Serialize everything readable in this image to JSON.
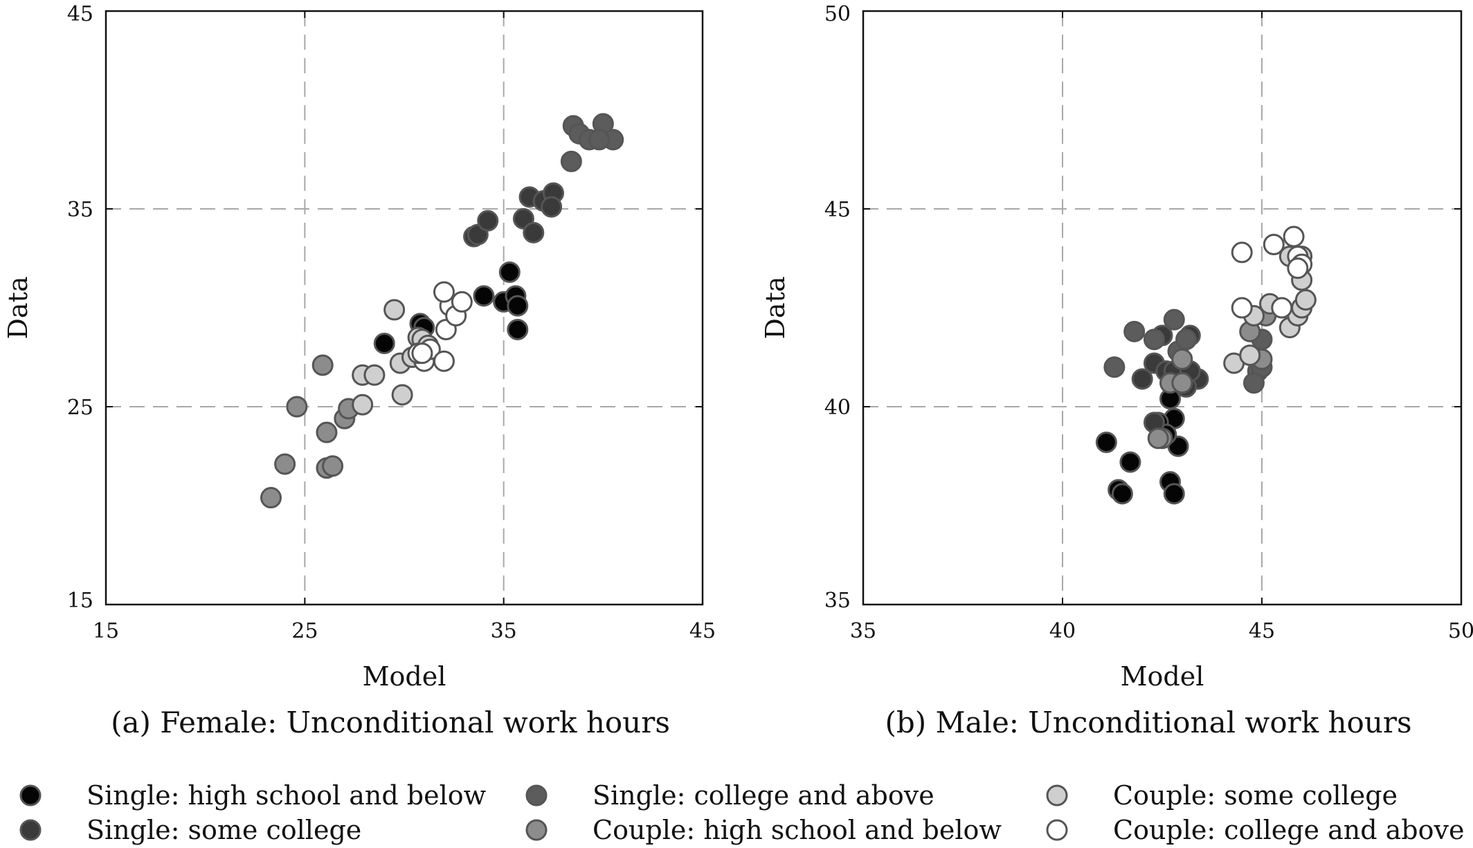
{
  "colors": {
    "single_hs": "#050505",
    "single_some": "#3a3a3a",
    "single_college": "#5c5c5c",
    "couple_hs": "#8c8c8c",
    "couple_some": "#cfcfcf",
    "couple_college": "#ffffff"
  },
  "legend": [
    {
      "key": "single_hs",
      "label": "Single: high school and below"
    },
    {
      "key": "single_college",
      "label": "Single: college and above"
    },
    {
      "key": "couple_some",
      "label": "Couple: some college"
    },
    {
      "key": "single_some",
      "label": "Single: some college"
    },
    {
      "key": "couple_hs",
      "label": "Couple: high school and below"
    },
    {
      "key": "couple_college",
      "label": "Couple: college and above"
    }
  ],
  "chart_data": [
    {
      "type": "scatter",
      "caption": "(a) Female: Unconditional work hours",
      "xlabel": "Model",
      "ylabel": "Data",
      "xlim": [
        15,
        45
      ],
      "ylim": [
        15,
        45
      ],
      "xticks": [
        "15",
        "25",
        "35",
        "45"
      ],
      "yticks": [
        "15",
        "25",
        "35",
        "45"
      ],
      "grid": true,
      "series": [
        {
          "key": "single_hs",
          "points": [
            [
              29.0,
              28.2
            ],
            [
              30.8,
              29.2
            ],
            [
              31.0,
              29.0
            ],
            [
              34.0,
              30.6
            ],
            [
              35.3,
              31.8
            ],
            [
              35.0,
              30.3
            ],
            [
              35.6,
              30.6
            ],
            [
              35.7,
              30.1
            ],
            [
              35.7,
              28.9
            ]
          ]
        },
        {
          "key": "single_some",
          "points": [
            [
              33.5,
              33.6
            ],
            [
              33.7,
              33.7
            ],
            [
              34.2,
              34.4
            ],
            [
              36.0,
              34.5
            ],
            [
              36.3,
              35.6
            ],
            [
              36.5,
              33.8
            ],
            [
              37.0,
              35.4
            ],
            [
              37.5,
              35.8
            ],
            [
              37.4,
              35.1
            ]
          ]
        },
        {
          "key": "single_college",
          "points": [
            [
              38.5,
              39.2
            ],
            [
              38.8,
              38.8
            ],
            [
              39.3,
              38.5
            ],
            [
              40.0,
              39.3
            ],
            [
              40.5,
              38.5
            ],
            [
              39.8,
              38.5
            ],
            [
              38.4,
              37.4
            ]
          ]
        },
        {
          "key": "couple_hs",
          "points": [
            [
              23.3,
              20.4
            ],
            [
              24.0,
              22.1
            ],
            [
              24.6,
              25.0
            ],
            [
              25.9,
              27.1
            ],
            [
              26.1,
              23.7
            ],
            [
              26.1,
              21.9
            ],
            [
              26.4,
              22.0
            ],
            [
              27.0,
              24.4
            ],
            [
              27.2,
              24.9
            ]
          ]
        },
        {
          "key": "couple_some",
          "points": [
            [
              27.9,
              26.6
            ],
            [
              28.5,
              26.6
            ],
            [
              27.9,
              25.1
            ],
            [
              29.9,
              25.6
            ],
            [
              29.8,
              27.2
            ],
            [
              29.5,
              29.9
            ],
            [
              30.4,
              27.5
            ],
            [
              30.7,
              28.5
            ],
            [
              30.9,
              28.4
            ],
            [
              31.2,
              28.1
            ]
          ]
        },
        {
          "key": "couple_college",
          "points": [
            [
              31.0,
              27.3
            ],
            [
              30.7,
              27.7
            ],
            [
              31.3,
              27.9
            ],
            [
              32.0,
              27.3
            ],
            [
              32.1,
              28.9
            ],
            [
              32.3,
              30.1
            ],
            [
              32.6,
              29.6
            ],
            [
              32.9,
              30.3
            ],
            [
              32.0,
              30.8
            ],
            [
              30.9,
              27.7
            ]
          ]
        }
      ]
    },
    {
      "type": "scatter",
      "caption": "(b) Male: Unconditional work hours",
      "xlabel": "Model",
      "ylabel": "Data",
      "xlim": [
        35,
        50
      ],
      "ylim": [
        35,
        50
      ],
      "xticks": [
        "35",
        "40",
        "45",
        "50"
      ],
      "yticks": [
        "35",
        "40",
        "45",
        "50"
      ],
      "grid": true,
      "series": [
        {
          "key": "single_hs",
          "points": [
            [
              41.1,
              39.1
            ],
            [
              41.4,
              37.9
            ],
            [
              41.5,
              37.8
            ],
            [
              41.7,
              38.6
            ],
            [
              42.7,
              38.1
            ],
            [
              42.8,
              37.8
            ],
            [
              42.8,
              39.7
            ],
            [
              42.9,
              39.0
            ],
            [
              42.7,
              40.2
            ],
            [
              42.4,
              39.6
            ],
            [
              42.6,
              39.3
            ]
          ]
        },
        {
          "key": "single_some",
          "points": [
            [
              42.0,
              40.7
            ],
            [
              42.3,
              41.1
            ],
            [
              42.6,
              40.9
            ],
            [
              42.5,
              41.8
            ],
            [
              43.2,
              41.8
            ],
            [
              43.4,
              40.7
            ],
            [
              43.1,
              40.5
            ],
            [
              42.3,
              39.6
            ],
            [
              42.8,
              40.9
            ],
            [
              43.2,
              40.9
            ]
          ]
        },
        {
          "key": "single_college",
          "points": [
            [
              41.3,
              41.0
            ],
            [
              41.8,
              41.9
            ],
            [
              42.3,
              41.7
            ],
            [
              42.8,
              42.2
            ],
            [
              42.9,
              41.4
            ],
            [
              44.9,
              40.9
            ],
            [
              45.0,
              41.0
            ],
            [
              44.8,
              40.6
            ],
            [
              45.0,
              41.7
            ],
            [
              43.1,
              41.7
            ]
          ]
        },
        {
          "key": "couple_hs",
          "points": [
            [
              42.5,
              39.2
            ],
            [
              42.4,
              39.2
            ],
            [
              42.7,
              40.6
            ],
            [
              43.0,
              41.2
            ],
            [
              43.0,
              40.6
            ],
            [
              44.7,
              41.9
            ],
            [
              45.1,
              42.3
            ],
            [
              45.0,
              41.2
            ]
          ]
        },
        {
          "key": "couple_some",
          "points": [
            [
              44.3,
              41.1
            ],
            [
              44.7,
              41.3
            ],
            [
              44.8,
              42.3
            ],
            [
              45.2,
              42.6
            ],
            [
              45.7,
              42.0
            ],
            [
              45.9,
              42.3
            ],
            [
              46.0,
              42.5
            ],
            [
              46.1,
              42.7
            ],
            [
              46.0,
              43.2
            ],
            [
              45.7,
              43.8
            ],
            [
              46.0,
              43.8
            ]
          ]
        },
        {
          "key": "couple_college",
          "points": [
            [
              44.5,
              43.9
            ],
            [
              44.5,
              42.5
            ],
            [
              45.3,
              44.1
            ],
            [
              45.5,
              42.5
            ],
            [
              45.8,
              44.3
            ],
            [
              45.9,
              43.8
            ],
            [
              46.0,
              43.6
            ],
            [
              45.9,
              43.5
            ]
          ]
        }
      ]
    }
  ]
}
